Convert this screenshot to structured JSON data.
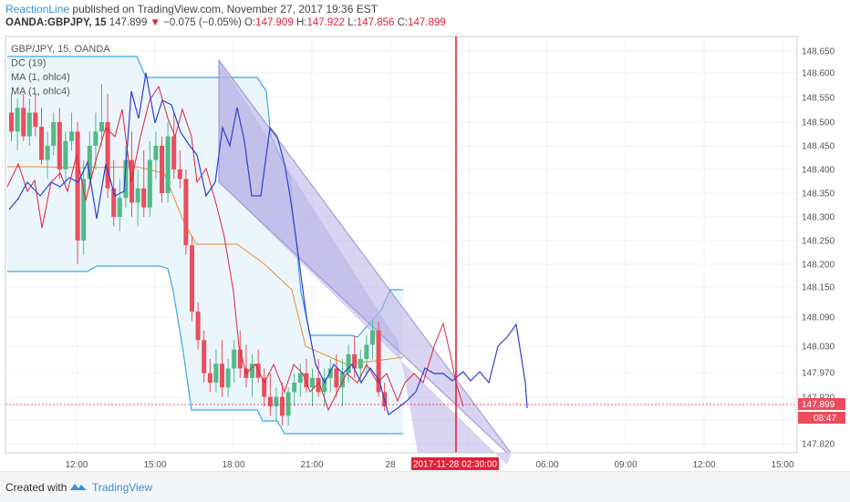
{
  "header": {
    "brand": "ReactionLine",
    "published_text": " published on TradingView.com, November 27, 2017 19:36 EST",
    "symbol": "OANDA:GBPJPY, 15",
    "last": "147.899",
    "change_arrow": "▼",
    "change": "−0.075 (−0.05%)",
    "open_label": "O:",
    "open": "147.909",
    "high_label": "H:",
    "high": "147.922",
    "low_label": "L:",
    "low": "147.856",
    "close_label": "C:",
    "close": "147.899"
  },
  "legend": [
    "GBP/JPY, 15, OANDA",
    "DC (19)",
    "MA (1, ohlc4)",
    "MA (1, ohlc4)"
  ],
  "footer": {
    "created": "Created with",
    "brand": "TradingView"
  },
  "colors": {
    "bull": "#53b987",
    "bear": "#eb4d5c",
    "dc": "#3ba8e6",
    "dc_fill": "#e9f5fc",
    "ma_red": "#e0223a",
    "ma_blue": "#2f3fcf",
    "ma_orange": "#ef8a2b",
    "channel": "#9a90d0",
    "channel_fill": "#b8b0e6",
    "vline": "#e0223a",
    "accent": "#3a8fd6"
  },
  "chart_data": {
    "type": "candlestick",
    "y_ticks": [
      "148.650",
      "148.600",
      "148.550",
      "148.500",
      "148.450",
      "148.400",
      "148.350",
      "148.300",
      "148.250",
      "148.200",
      "148.150",
      "148.090",
      "148.030",
      "147.970",
      "147.920",
      "147.880",
      "147.820"
    ],
    "x_ticks": [
      "12:00",
      "15:00",
      "18:00",
      "21:00",
      "28",
      "03:00",
      "06:00",
      "09:00",
      "12:00",
      "15:00"
    ],
    "current_price_label": "147.899",
    "countdown_label": "08:47",
    "vertical_marker_label": "2017-11-28 02:30:00",
    "candles": [
      {
        "o": 148.52,
        "h": 148.56,
        "l": 148.46,
        "c": 148.48
      },
      {
        "o": 148.48,
        "h": 148.55,
        "l": 148.44,
        "c": 148.53
      },
      {
        "o": 148.53,
        "h": 148.56,
        "l": 148.46,
        "c": 148.47
      },
      {
        "o": 148.47,
        "h": 148.55,
        "l": 148.45,
        "c": 148.52
      },
      {
        "o": 148.52,
        "h": 148.56,
        "l": 148.47,
        "c": 148.49
      },
      {
        "o": 148.49,
        "h": 148.53,
        "l": 148.41,
        "c": 148.42
      },
      {
        "o": 148.42,
        "h": 148.48,
        "l": 148.38,
        "c": 148.45
      },
      {
        "o": 148.45,
        "h": 148.52,
        "l": 148.43,
        "c": 148.5
      },
      {
        "o": 148.5,
        "h": 148.53,
        "l": 148.38,
        "c": 148.4
      },
      {
        "o": 148.4,
        "h": 148.48,
        "l": 148.37,
        "c": 148.46
      },
      {
        "o": 148.46,
        "h": 148.52,
        "l": 148.44,
        "c": 148.48
      },
      {
        "o": 148.48,
        "h": 148.5,
        "l": 148.2,
        "c": 148.25
      },
      {
        "o": 148.25,
        "h": 148.42,
        "l": 148.22,
        "c": 148.38
      },
      {
        "o": 148.38,
        "h": 148.48,
        "l": 148.36,
        "c": 148.45
      },
      {
        "o": 148.45,
        "h": 148.52,
        "l": 148.4,
        "c": 148.48
      },
      {
        "o": 148.48,
        "h": 148.58,
        "l": 148.45,
        "c": 148.5
      },
      {
        "o": 148.5,
        "h": 148.56,
        "l": 148.34,
        "c": 148.36
      },
      {
        "o": 148.36,
        "h": 148.42,
        "l": 148.28,
        "c": 148.3
      },
      {
        "o": 148.3,
        "h": 148.38,
        "l": 148.27,
        "c": 148.34
      },
      {
        "o": 148.34,
        "h": 148.45,
        "l": 148.32,
        "c": 148.42
      },
      {
        "o": 148.42,
        "h": 148.48,
        "l": 148.3,
        "c": 148.33
      },
      {
        "o": 148.33,
        "h": 148.4,
        "l": 148.28,
        "c": 148.36
      },
      {
        "o": 148.36,
        "h": 148.44,
        "l": 148.3,
        "c": 148.32
      },
      {
        "o": 148.32,
        "h": 148.46,
        "l": 148.3,
        "c": 148.42
      },
      {
        "o": 148.42,
        "h": 148.48,
        "l": 148.38,
        "c": 148.45
      },
      {
        "o": 148.45,
        "h": 148.47,
        "l": 148.33,
        "c": 148.35
      },
      {
        "o": 148.35,
        "h": 148.5,
        "l": 148.33,
        "c": 148.47
      },
      {
        "o": 148.47,
        "h": 148.52,
        "l": 148.38,
        "c": 148.4
      },
      {
        "o": 148.4,
        "h": 148.44,
        "l": 148.36,
        "c": 148.38
      },
      {
        "o": 148.38,
        "h": 148.4,
        "l": 148.22,
        "c": 148.24
      },
      {
        "o": 148.24,
        "h": 148.26,
        "l": 148.08,
        "c": 148.1
      },
      {
        "o": 148.1,
        "h": 148.12,
        "l": 148.02,
        "c": 148.04
      },
      {
        "o": 148.04,
        "h": 148.06,
        "l": 147.95,
        "c": 147.97
      },
      {
        "o": 147.97,
        "h": 148.0,
        "l": 147.93,
        "c": 147.95
      },
      {
        "o": 147.95,
        "h": 148.02,
        "l": 147.93,
        "c": 147.99
      },
      {
        "o": 147.99,
        "h": 148.04,
        "l": 147.92,
        "c": 147.94
      },
      {
        "o": 147.94,
        "h": 148.0,
        "l": 147.92,
        "c": 147.98
      },
      {
        "o": 147.98,
        "h": 148.04,
        "l": 147.95,
        "c": 148.02
      },
      {
        "o": 148.02,
        "h": 148.06,
        "l": 147.96,
        "c": 147.98
      },
      {
        "o": 147.98,
        "h": 148.03,
        "l": 147.94,
        "c": 147.96
      },
      {
        "o": 147.96,
        "h": 148.01,
        "l": 147.92,
        "c": 147.99
      },
      {
        "o": 147.99,
        "h": 148.02,
        "l": 147.95,
        "c": 147.96
      },
      {
        "o": 147.96,
        "h": 147.98,
        "l": 147.9,
        "c": 147.92
      },
      {
        "o": 147.92,
        "h": 147.97,
        "l": 147.88,
        "c": 147.9
      },
      {
        "o": 147.9,
        "h": 147.94,
        "l": 147.87,
        "c": 147.92
      },
      {
        "o": 147.92,
        "h": 147.95,
        "l": 147.86,
        "c": 147.88
      },
      {
        "o": 147.88,
        "h": 147.94,
        "l": 147.86,
        "c": 147.93
      },
      {
        "o": 147.93,
        "h": 147.97,
        "l": 147.9,
        "c": 147.95
      },
      {
        "o": 147.95,
        "h": 147.99,
        "l": 147.92,
        "c": 147.97
      },
      {
        "o": 147.97,
        "h": 148.0,
        "l": 147.93,
        "c": 147.94
      },
      {
        "o": 147.94,
        "h": 147.98,
        "l": 147.9,
        "c": 147.96
      },
      {
        "o": 147.96,
        "h": 148.0,
        "l": 147.92,
        "c": 147.93
      },
      {
        "o": 147.93,
        "h": 147.98,
        "l": 147.9,
        "c": 147.96
      },
      {
        "o": 147.96,
        "h": 148.0,
        "l": 147.93,
        "c": 147.98
      },
      {
        "o": 147.98,
        "h": 148.01,
        "l": 147.92,
        "c": 147.94
      },
      {
        "o": 147.94,
        "h": 148.0,
        "l": 147.9,
        "c": 147.97
      },
      {
        "o": 147.97,
        "h": 148.03,
        "l": 147.95,
        "c": 148.01
      },
      {
        "o": 148.01,
        "h": 148.05,
        "l": 147.96,
        "c": 147.98
      },
      {
        "o": 147.98,
        "h": 148.02,
        "l": 147.95,
        "c": 148.0
      },
      {
        "o": 148.0,
        "h": 148.05,
        "l": 147.97,
        "c": 148.03
      },
      {
        "o": 148.03,
        "h": 148.08,
        "l": 148.0,
        "c": 148.06
      },
      {
        "o": 148.06,
        "h": 148.08,
        "l": 147.92,
        "c": 147.93
      },
      {
        "o": 147.93,
        "h": 147.95,
        "l": 147.89,
        "c": 147.9
      }
    ]
  }
}
